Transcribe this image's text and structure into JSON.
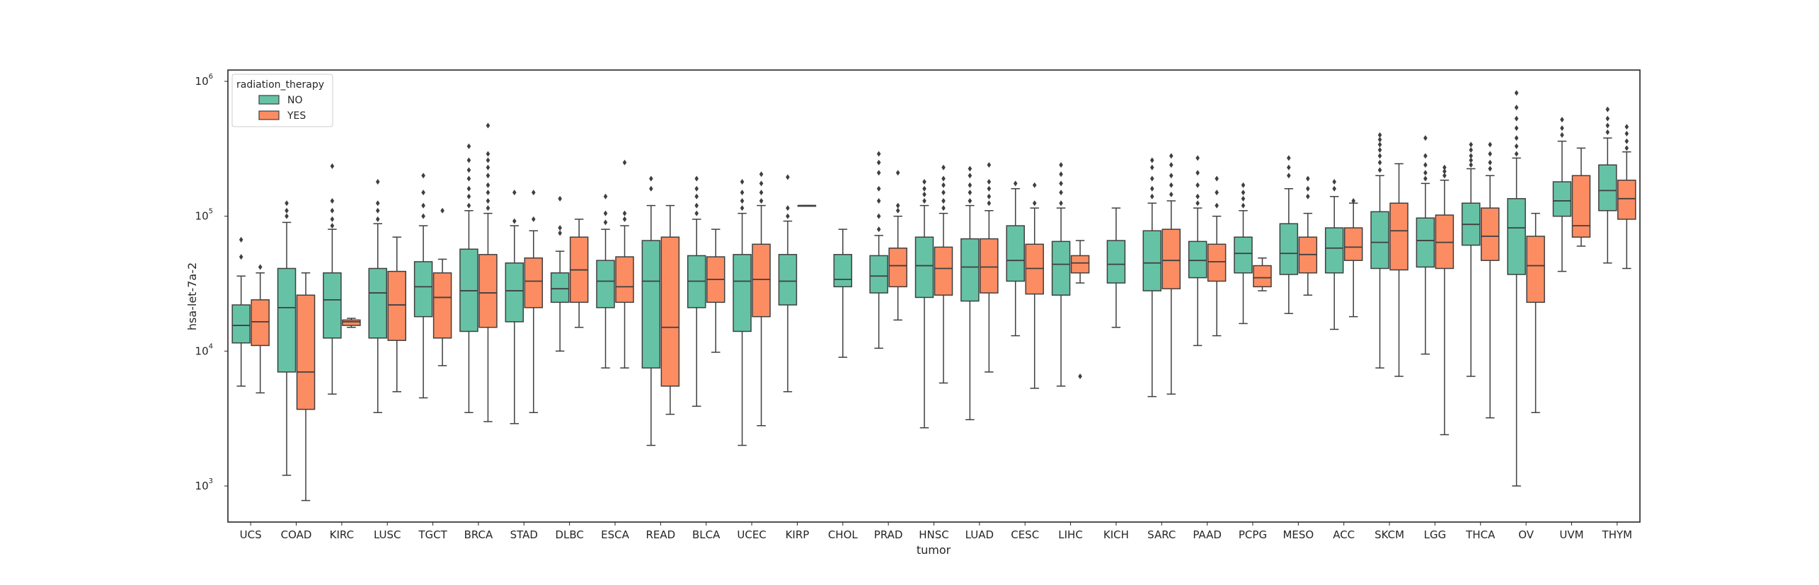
{
  "chart_data": {
    "type": "box",
    "xlabel": "tumor",
    "ylabel": "hsa-let-7a-2",
    "yscale": "log",
    "ylim": [
      400,
      1000000
    ],
    "yticks": [
      {
        "value": 1000,
        "base": "10",
        "exp": "3"
      },
      {
        "value": 10000,
        "base": "10",
        "exp": "4"
      },
      {
        "value": 100000,
        "base": "10",
        "exp": "5"
      },
      {
        "value": 1000000,
        "base": "10",
        "exp": "6"
      }
    ],
    "grid": false,
    "legend": {
      "title": "radiation_therapy",
      "position": "top-left"
    },
    "categories": [
      "UCS",
      "COAD",
      "KIRC",
      "LUSC",
      "TGCT",
      "BRCA",
      "STAD",
      "DLBC",
      "ESCA",
      "READ",
      "BLCA",
      "UCEC",
      "KIRP",
      "CHOL",
      "PRAD",
      "HNSC",
      "LUAD",
      "CESC",
      "LIHC",
      "KICH",
      "SARC",
      "PAAD",
      "PCPG",
      "MESO",
      "ACC",
      "SKCM",
      "LGG",
      "THCA",
      "OV",
      "UVM",
      "THYM"
    ],
    "series": [
      {
        "name": "NO",
        "color": "#66c2a5",
        "boxes": [
          {
            "cat": "UCS",
            "whislo": 5500,
            "q1": 11500,
            "med": 15500,
            "q3": 22000,
            "whishi": 36000,
            "fliers": [
              50000,
              67000
            ]
          },
          {
            "cat": "COAD",
            "whislo": 1200,
            "q1": 7000,
            "med": 21000,
            "q3": 41000,
            "whishi": 90000,
            "fliers": [
              100000,
              110000,
              125000
            ]
          },
          {
            "cat": "KIRC",
            "whislo": 4800,
            "q1": 12500,
            "med": 24000,
            "q3": 38000,
            "whishi": 80000,
            "fliers": [
              85000,
              95000,
              110000,
              130000,
              235000
            ]
          },
          {
            "cat": "LUSC",
            "whislo": 3500,
            "q1": 12500,
            "med": 27000,
            "q3": 41000,
            "whishi": 88000,
            "fliers": [
              95000,
              110000,
              125000,
              180000
            ]
          },
          {
            "cat": "TGCT",
            "whislo": 4500,
            "q1": 18000,
            "med": 30000,
            "q3": 46000,
            "whishi": 85000,
            "fliers": [
              100000,
              120000,
              150000,
              200000
            ]
          },
          {
            "cat": "BRCA",
            "whislo": 3500,
            "q1": 14000,
            "med": 28000,
            "q3": 57000,
            "whishi": 110000,
            "fliers": [
              120000,
              140000,
              160000,
              190000,
              220000,
              260000,
              330000
            ]
          },
          {
            "cat": "STAD",
            "whislo": 2900,
            "q1": 16500,
            "med": 28000,
            "q3": 45000,
            "whishi": 85000,
            "fliers": [
              92000,
              150000
            ]
          },
          {
            "cat": "DLBC",
            "whislo": 10000,
            "q1": 23000,
            "med": 29000,
            "q3": 38000,
            "whishi": 55000,
            "fliers": [
              75000,
              82000,
              135000
            ]
          },
          {
            "cat": "ESCA",
            "whislo": 7500,
            "q1": 21000,
            "med": 33000,
            "q3": 47000,
            "whishi": 80000,
            "fliers": [
              90000,
              105000,
              140000
            ]
          },
          {
            "cat": "READ",
            "whislo": 2000,
            "q1": 7500,
            "med": 33000,
            "q3": 66000,
            "whishi": 120000,
            "fliers": [
              160000,
              190000
            ]
          },
          {
            "cat": "BLCA",
            "whislo": 3900,
            "q1": 21000,
            "med": 33000,
            "q3": 51000,
            "whishi": 95000,
            "fliers": [
              105000,
              120000,
              140000,
              160000,
              190000
            ]
          },
          {
            "cat": "UCEC",
            "whislo": 2000,
            "q1": 14000,
            "med": 33000,
            "q3": 52000,
            "whishi": 105000,
            "fliers": [
              115000,
              130000,
              150000,
              180000
            ]
          },
          {
            "cat": "KIRP",
            "whislo": 5000,
            "q1": 22000,
            "med": 33000,
            "q3": 52000,
            "whishi": 92000,
            "fliers": [
              100000,
              115000,
              195000
            ]
          },
          {
            "cat": "CHOL",
            "whislo": 9000,
            "q1": 30000,
            "med": 34000,
            "q3": 52000,
            "whishi": 80000,
            "fliers": []
          },
          {
            "cat": "PRAD",
            "whislo": 10500,
            "q1": 27000,
            "med": 36000,
            "q3": 51000,
            "whishi": 72000,
            "fliers": [
              80000,
              100000,
              130000,
              160000,
              210000,
              250000,
              290000
            ]
          },
          {
            "cat": "HNSC",
            "whislo": 2700,
            "q1": 25000,
            "med": 43000,
            "q3": 70000,
            "whishi": 120000,
            "fliers": [
              130000,
              145000,
              160000,
              180000
            ]
          },
          {
            "cat": "LUAD",
            "whislo": 3100,
            "q1": 23500,
            "med": 42000,
            "q3": 68000,
            "whishi": 120000,
            "fliers": [
              130000,
              150000,
              170000,
              200000,
              225000
            ]
          },
          {
            "cat": "CESC",
            "whislo": 13000,
            "q1": 33000,
            "med": 47000,
            "q3": 85000,
            "whishi": 160000,
            "fliers": [
              175000
            ]
          },
          {
            "cat": "LIHC",
            "whislo": 5500,
            "q1": 26000,
            "med": 44000,
            "q3": 65000,
            "whishi": 115000,
            "fliers": [
              125000,
              150000,
              175000,
              205000,
              240000
            ]
          },
          {
            "cat": "KICH",
            "whislo": 15000,
            "q1": 32000,
            "med": 44000,
            "q3": 66000,
            "whishi": 115000,
            "fliers": []
          },
          {
            "cat": "SARC",
            "whislo": 4600,
            "q1": 28000,
            "med": 45000,
            "q3": 78000,
            "whishi": 125000,
            "fliers": [
              140000,
              160000,
              190000,
              230000,
              260000
            ]
          },
          {
            "cat": "PAAD",
            "whislo": 11000,
            "q1": 35000,
            "med": 47000,
            "q3": 65000,
            "whishi": 115000,
            "fliers": [
              125000,
              140000,
              170000,
              210000,
              270000
            ]
          },
          {
            "cat": "PCPG",
            "whislo": 16000,
            "q1": 38000,
            "med": 53000,
            "q3": 70000,
            "whishi": 110000,
            "fliers": [
              120000,
              135000,
              150000,
              170000
            ]
          },
          {
            "cat": "MESO",
            "whislo": 19000,
            "q1": 37000,
            "med": 53000,
            "q3": 88000,
            "whishi": 160000,
            "fliers": [
              200000,
              230000,
              270000
            ]
          },
          {
            "cat": "ACC",
            "whislo": 14500,
            "q1": 38000,
            "med": 58000,
            "q3": 82000,
            "whishi": 140000,
            "fliers": [
              160000,
              180000
            ]
          },
          {
            "cat": "SKCM",
            "whislo": 7500,
            "q1": 41000,
            "med": 64000,
            "q3": 108000,
            "whishi": 200000,
            "fliers": [
              220000,
              250000,
              280000,
              310000,
              340000,
              370000,
              400000
            ]
          },
          {
            "cat": "LGG",
            "whislo": 9500,
            "q1": 42000,
            "med": 66000,
            "q3": 97000,
            "whishi": 175000,
            "fliers": [
              190000,
              210000,
              240000,
              280000,
              380000
            ]
          },
          {
            "cat": "THCA",
            "whislo": 6500,
            "q1": 61000,
            "med": 87000,
            "q3": 125000,
            "whishi": 225000,
            "fliers": [
              240000,
              260000,
              280000,
              310000,
              340000
            ]
          },
          {
            "cat": "OV",
            "whislo": 1000,
            "q1": 37000,
            "med": 82000,
            "q3": 135000,
            "whishi": 270000,
            "fliers": [
              290000,
              330000,
              380000,
              450000,
              530000,
              640000,
              820000
            ]
          },
          {
            "cat": "UVM",
            "whislo": 39000,
            "q1": 100000,
            "med": 130000,
            "q3": 180000,
            "whishi": 360000,
            "fliers": [
              400000,
              450000,
              520000
            ]
          },
          {
            "cat": "THYM",
            "whislo": 45000,
            "q1": 110000,
            "med": 155000,
            "q3": 240000,
            "whishi": 380000,
            "fliers": [
              420000,
              470000,
              530000,
              620000
            ]
          }
        ]
      },
      {
        "name": "YES",
        "color": "#fc8d62",
        "boxes": [
          {
            "cat": "UCS",
            "whislo": 4900,
            "q1": 11000,
            "med": 16500,
            "q3": 24000,
            "whishi": 38000,
            "fliers": [
              42000
            ]
          },
          {
            "cat": "COAD",
            "whislo": 780,
            "q1": 3700,
            "med": 7000,
            "q3": 26000,
            "whishi": 38000,
            "fliers": []
          },
          {
            "cat": "KIRC",
            "whislo": 15000,
            "q1": 15500,
            "med": 16500,
            "q3": 17000,
            "whishi": 17500,
            "fliers": []
          },
          {
            "cat": "LUSC",
            "whislo": 5000,
            "q1": 12000,
            "med": 22000,
            "q3": 39000,
            "whishi": 70000,
            "fliers": []
          },
          {
            "cat": "TGCT",
            "whislo": 7800,
            "q1": 12500,
            "med": 25000,
            "q3": 38000,
            "whishi": 48000,
            "fliers": [
              110000
            ]
          },
          {
            "cat": "BRCA",
            "whislo": 3000,
            "q1": 15000,
            "med": 27000,
            "q3": 52000,
            "whishi": 105000,
            "fliers": [
              115000,
              130000,
              150000,
              170000,
              200000,
              230000,
              260000,
              290000,
              470000
            ]
          },
          {
            "cat": "STAD",
            "whislo": 3500,
            "q1": 21000,
            "med": 33000,
            "q3": 49000,
            "whishi": 78000,
            "fliers": [
              95000,
              150000
            ]
          },
          {
            "cat": "DLBC",
            "whislo": 15000,
            "q1": 23000,
            "med": 40000,
            "q3": 70000,
            "whishi": 95000,
            "fliers": []
          },
          {
            "cat": "ESCA",
            "whislo": 7500,
            "q1": 23000,
            "med": 30000,
            "q3": 50000,
            "whishi": 85000,
            "fliers": [
              95000,
              105000,
              250000
            ]
          },
          {
            "cat": "READ",
            "whislo": 3400,
            "q1": 5500,
            "med": 15000,
            "q3": 70000,
            "whishi": 120000,
            "fliers": []
          },
          {
            "cat": "BLCA",
            "whislo": 9800,
            "q1": 23000,
            "med": 34000,
            "q3": 50000,
            "whishi": 80000,
            "fliers": []
          },
          {
            "cat": "UCEC",
            "whislo": 2800,
            "q1": 18000,
            "med": 34000,
            "q3": 62000,
            "whishi": 120000,
            "fliers": [
              130000,
              150000,
              175000,
              205000
            ]
          },
          {
            "cat": "KIRP",
            "whislo": 120000,
            "q1": 120000,
            "med": 120000,
            "q3": 120000,
            "whishi": 120000,
            "fliers": []
          },
          {
            "cat": "PRAD",
            "whislo": 17000,
            "q1": 30000,
            "med": 43000,
            "q3": 58000,
            "whishi": 100000,
            "fliers": [
              110000,
              120000,
              210000
            ]
          },
          {
            "cat": "HNSC",
            "whislo": 5800,
            "q1": 26000,
            "med": 41000,
            "q3": 59000,
            "whishi": 105000,
            "fliers": [
              115000,
              130000,
              150000,
              170000,
              190000,
              230000
            ]
          },
          {
            "cat": "LUAD",
            "whislo": 7000,
            "q1": 27000,
            "med": 42000,
            "q3": 68000,
            "whishi": 110000,
            "fliers": [
              125000,
              140000,
              160000,
              180000,
              240000
            ]
          },
          {
            "cat": "CESC",
            "whislo": 5300,
            "q1": 26500,
            "med": 41000,
            "q3": 62000,
            "whishi": 115000,
            "fliers": [
              125000,
              170000
            ]
          },
          {
            "cat": "LIHC",
            "whislo": 32000,
            "q1": 38000,
            "med": 45000,
            "q3": 51000,
            "whishi": 66000,
            "fliers": [
              6500
            ]
          },
          {
            "cat": "SARC",
            "whislo": 4800,
            "q1": 29000,
            "med": 47000,
            "q3": 80000,
            "whishi": 130000,
            "fliers": [
              145000,
              170000,
              200000,
              240000,
              280000
            ]
          },
          {
            "cat": "PAAD",
            "whislo": 13000,
            "q1": 33000,
            "med": 46000,
            "q3": 62000,
            "whishi": 100000,
            "fliers": [
              120000,
              150000,
              190000
            ]
          },
          {
            "cat": "PCPG",
            "whislo": 28000,
            "q1": 30000,
            "med": 35000,
            "q3": 43000,
            "whishi": 49000,
            "fliers": []
          },
          {
            "cat": "MESO",
            "whislo": 26000,
            "q1": 38000,
            "med": 52000,
            "q3": 70000,
            "whishi": 105000,
            "fliers": [
              140000,
              160000,
              190000
            ]
          },
          {
            "cat": "ACC",
            "whislo": 18000,
            "q1": 47000,
            "med": 59000,
            "q3": 82000,
            "whishi": 125000,
            "fliers": [
              130000
            ]
          },
          {
            "cat": "SKCM",
            "whislo": 6500,
            "q1": 40000,
            "med": 78000,
            "q3": 125000,
            "whishi": 245000,
            "fliers": []
          },
          {
            "cat": "LGG",
            "whislo": 2400,
            "q1": 41000,
            "med": 64000,
            "q3": 102000,
            "whishi": 185000,
            "fliers": [
              200000,
              215000,
              230000
            ]
          },
          {
            "cat": "THCA",
            "whislo": 3200,
            "q1": 47000,
            "med": 71000,
            "q3": 115000,
            "whishi": 200000,
            "fliers": [
              225000,
              250000,
              290000,
              340000
            ]
          },
          {
            "cat": "OV",
            "whislo": 3500,
            "q1": 23000,
            "med": 43000,
            "q3": 71000,
            "whishi": 105000,
            "fliers": []
          },
          {
            "cat": "UVM",
            "whislo": 60000,
            "q1": 70000,
            "med": 85000,
            "q3": 200000,
            "whishi": 320000,
            "fliers": []
          },
          {
            "cat": "THYM",
            "whislo": 41000,
            "q1": 95000,
            "med": 135000,
            "q3": 185000,
            "whishi": 300000,
            "fliers": [
              320000,
              360000,
              410000,
              460000
            ]
          }
        ]
      }
    ]
  }
}
